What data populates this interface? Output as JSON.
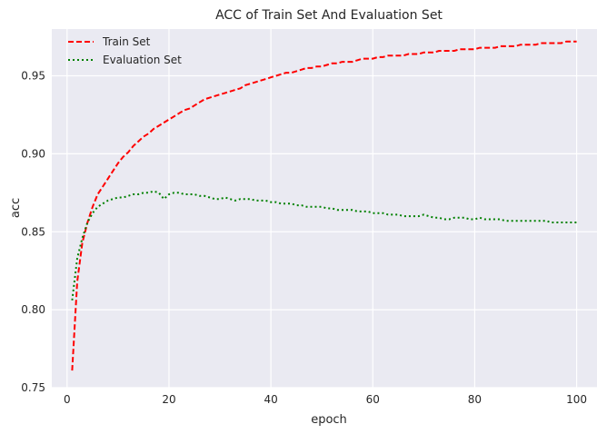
{
  "chart_data": {
    "type": "line",
    "title": "ACC of Train Set And Evaluation Set",
    "xlabel": "epoch",
    "ylabel": "acc",
    "xlim": [
      -3,
      104
    ],
    "ylim": [
      0.75,
      0.98
    ],
    "xticks": [
      0,
      20,
      40,
      60,
      80,
      100
    ],
    "yticks": [
      0.75,
      0.8,
      0.85,
      0.9,
      0.95
    ],
    "ytick_labels": [
      "0.75",
      "0.80",
      "0.85",
      "0.90",
      "0.95"
    ],
    "grid": true,
    "background": "#eaeaf2",
    "legend_position": "upper-left",
    "series": [
      {
        "name": "Train Set",
        "color": "#ff0000",
        "style": "dashed",
        "x": [
          1,
          2,
          3,
          4,
          5,
          6,
          7,
          8,
          9,
          10,
          11,
          12,
          13,
          14,
          15,
          16,
          17,
          18,
          19,
          20,
          21,
          22,
          23,
          24,
          25,
          26,
          27,
          28,
          29,
          30,
          31,
          32,
          33,
          34,
          35,
          36,
          37,
          38,
          39,
          40,
          41,
          42,
          43,
          44,
          45,
          46,
          47,
          48,
          49,
          50,
          51,
          52,
          53,
          54,
          55,
          56,
          57,
          58,
          59,
          60,
          61,
          62,
          63,
          64,
          65,
          66,
          67,
          68,
          69,
          70,
          71,
          72,
          73,
          74,
          75,
          76,
          77,
          78,
          79,
          80,
          81,
          82,
          83,
          84,
          85,
          86,
          87,
          88,
          89,
          90,
          91,
          92,
          93,
          94,
          95,
          96,
          97,
          98,
          99,
          100
        ],
        "values": [
          0.761,
          0.818,
          0.843,
          0.856,
          0.866,
          0.874,
          0.879,
          0.884,
          0.889,
          0.894,
          0.898,
          0.901,
          0.905,
          0.908,
          0.911,
          0.913,
          0.916,
          0.918,
          0.92,
          0.922,
          0.924,
          0.926,
          0.928,
          0.929,
          0.931,
          0.933,
          0.935,
          0.936,
          0.937,
          0.938,
          0.939,
          0.94,
          0.941,
          0.942,
          0.944,
          0.945,
          0.946,
          0.947,
          0.948,
          0.949,
          0.95,
          0.951,
          0.952,
          0.952,
          0.953,
          0.954,
          0.955,
          0.955,
          0.956,
          0.956,
          0.957,
          0.958,
          0.958,
          0.959,
          0.959,
          0.959,
          0.96,
          0.961,
          0.961,
          0.961,
          0.962,
          0.962,
          0.963,
          0.963,
          0.963,
          0.963,
          0.964,
          0.964,
          0.964,
          0.965,
          0.965,
          0.965,
          0.966,
          0.966,
          0.966,
          0.966,
          0.967,
          0.967,
          0.967,
          0.967,
          0.968,
          0.968,
          0.968,
          0.968,
          0.969,
          0.969,
          0.969,
          0.969,
          0.97,
          0.97,
          0.97,
          0.97,
          0.971,
          0.971,
          0.971,
          0.971,
          0.971,
          0.972,
          0.972,
          0.972
        ]
      },
      {
        "name": "Evaluation Set",
        "color": "#008000",
        "style": "dotted",
        "x": [
          1,
          2,
          3,
          4,
          5,
          6,
          7,
          8,
          9,
          10,
          11,
          12,
          13,
          14,
          15,
          16,
          17,
          18,
          19,
          20,
          21,
          22,
          23,
          24,
          25,
          26,
          27,
          28,
          29,
          30,
          31,
          32,
          33,
          34,
          35,
          36,
          37,
          38,
          39,
          40,
          41,
          42,
          43,
          44,
          45,
          46,
          47,
          48,
          49,
          50,
          51,
          52,
          53,
          54,
          55,
          56,
          57,
          58,
          59,
          60,
          61,
          62,
          63,
          64,
          65,
          66,
          67,
          68,
          69,
          70,
          71,
          72,
          73,
          74,
          75,
          76,
          77,
          78,
          79,
          80,
          81,
          82,
          83,
          84,
          85,
          86,
          87,
          88,
          89,
          90,
          91,
          92,
          93,
          94,
          95,
          96,
          97,
          98,
          99,
          100
        ],
        "values": [
          0.806,
          0.833,
          0.846,
          0.856,
          0.862,
          0.866,
          0.868,
          0.87,
          0.871,
          0.872,
          0.872,
          0.873,
          0.874,
          0.874,
          0.875,
          0.875,
          0.876,
          0.875,
          0.871,
          0.874,
          0.875,
          0.875,
          0.874,
          0.874,
          0.874,
          0.873,
          0.873,
          0.872,
          0.871,
          0.871,
          0.872,
          0.871,
          0.87,
          0.871,
          0.871,
          0.871,
          0.87,
          0.87,
          0.87,
          0.869,
          0.869,
          0.868,
          0.868,
          0.868,
          0.867,
          0.867,
          0.866,
          0.866,
          0.866,
          0.866,
          0.865,
          0.865,
          0.864,
          0.864,
          0.864,
          0.864,
          0.863,
          0.863,
          0.863,
          0.862,
          0.862,
          0.862,
          0.861,
          0.861,
          0.861,
          0.86,
          0.86,
          0.86,
          0.86,
          0.861,
          0.86,
          0.859,
          0.859,
          0.858,
          0.858,
          0.859,
          0.859,
          0.859,
          0.858,
          0.858,
          0.859,
          0.858,
          0.858,
          0.858,
          0.858,
          0.857,
          0.857,
          0.857,
          0.857,
          0.857,
          0.857,
          0.857,
          0.857,
          0.857,
          0.856,
          0.856,
          0.856,
          0.856,
          0.856,
          0.856
        ]
      }
    ]
  }
}
